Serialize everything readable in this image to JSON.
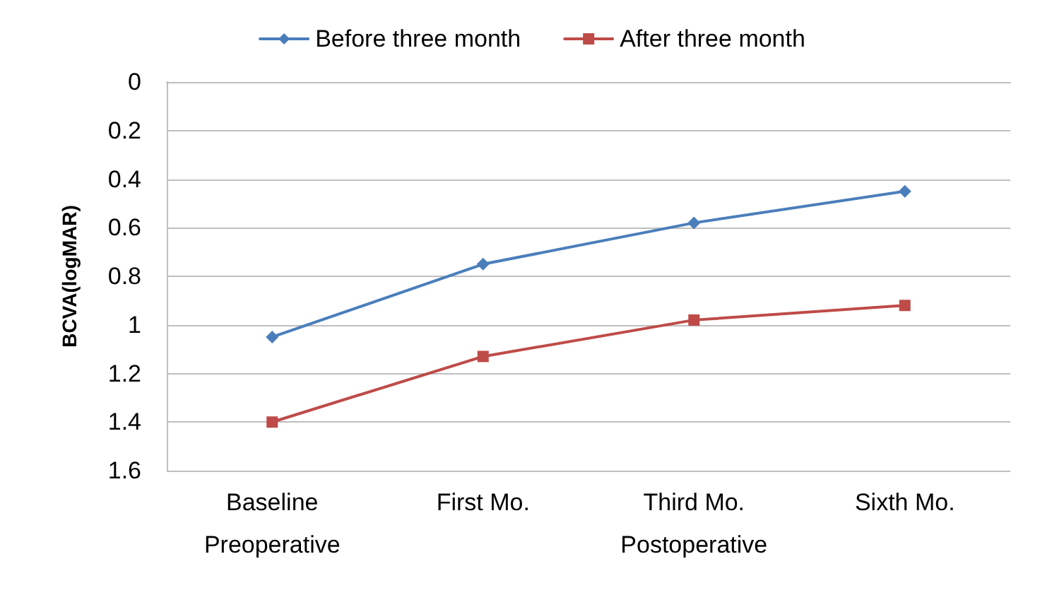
{
  "chart_data": {
    "type": "line",
    "ylabel": "BCVA(logMAR)",
    "categories": [
      "Baseline",
      "First Mo.",
      "Third Mo.",
      "Sixth Mo."
    ],
    "series": [
      {
        "name": "Before three month",
        "color": "#4a7ebb",
        "marker": "diamond",
        "values": [
          1.05,
          0.75,
          0.58,
          0.45
        ]
      },
      {
        "name": "After three month",
        "color": "#be4b48",
        "marker": "square",
        "values": [
          1.4,
          1.13,
          0.98,
          0.92
        ]
      }
    ],
    "ylim": [
      1.6,
      0
    ],
    "yticks": [
      0,
      0.2,
      0.4,
      0.6,
      0.8,
      1,
      1.2,
      1.4,
      1.6
    ],
    "grid": "y",
    "legend": "top",
    "line_style": "solid",
    "annotations": [
      "Preoperative",
      "Postoperative"
    ]
  }
}
